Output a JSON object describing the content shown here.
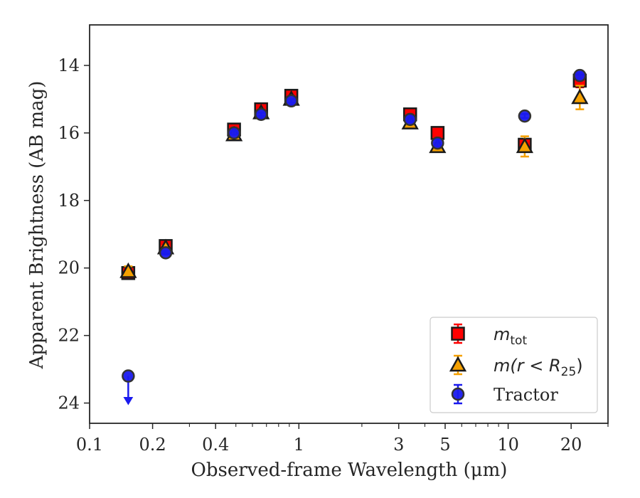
{
  "chart_data": {
    "type": "scatter",
    "xlabel": "Observed-frame Wavelength (μm)",
    "ylabel": "Apparent Brightness (AB mag)",
    "x_scale": "log",
    "y_inverted": true,
    "xlim": [
      0.1,
      30
    ],
    "ylim": [
      24.6,
      12.8
    ],
    "x_ticks": [
      0.1,
      0.2,
      0.4,
      1,
      3,
      5,
      10,
      20
    ],
    "x_tick_labels": [
      "0.1",
      "0.2",
      "0.4",
      "1",
      "3",
      "5",
      "10",
      "20"
    ],
    "y_ticks": [
      14,
      16,
      18,
      20,
      22,
      24
    ],
    "y_tick_labels": [
      "14",
      "16",
      "18",
      "20",
      "22",
      "24"
    ],
    "grid": false,
    "legend_position": "bottom-right",
    "series": [
      {
        "name": "m_tot",
        "label_main": "m",
        "label_sub": "tot",
        "marker": "square",
        "fill": "#ff0000",
        "edge": "#1a1a1a",
        "x": [
          0.153,
          0.231,
          0.49,
          0.66,
          0.92,
          3.4,
          4.6,
          12.0,
          22.0
        ],
        "y": [
          20.15,
          19.35,
          15.9,
          15.3,
          14.9,
          15.45,
          16.0,
          16.35,
          14.45
        ],
        "err": [
          0.1,
          0.05,
          0.06,
          0.06,
          0.06,
          0.08,
          0.1,
          0.15,
          0.2
        ]
      },
      {
        "name": "m(r<R_25)",
        "label_main": "m(r < R",
        "label_sub": "25",
        "label_tail": ")",
        "marker": "triangle",
        "fill": "#f5a000",
        "edge": "#1a1a1a",
        "x": [
          0.153,
          0.231,
          0.49,
          0.66,
          0.92,
          3.4,
          4.6,
          12.0,
          22.0
        ],
        "y": [
          20.1,
          19.4,
          16.05,
          15.4,
          15.0,
          15.7,
          16.4,
          16.4,
          14.95
        ],
        "err": [
          0.15,
          0.05,
          0.06,
          0.06,
          0.06,
          0.08,
          0.12,
          0.3,
          0.35
        ]
      },
      {
        "name": "Tractor",
        "marker": "circle",
        "fill": "#1a1aee",
        "edge": "#333333",
        "x": [
          0.153,
          0.231,
          0.49,
          0.66,
          0.92,
          3.4,
          4.6,
          12.0,
          22.0
        ],
        "y": [
          23.2,
          19.55,
          16.0,
          15.45,
          15.05,
          15.6,
          16.3,
          15.5,
          14.3
        ],
        "err": [
          0,
          0.05,
          0.05,
          0.05,
          0.05,
          0.08,
          0.1,
          0.06,
          0.1
        ],
        "upper_limit": [
          true,
          false,
          false,
          false,
          false,
          false,
          false,
          false,
          false
        ]
      }
    ]
  }
}
